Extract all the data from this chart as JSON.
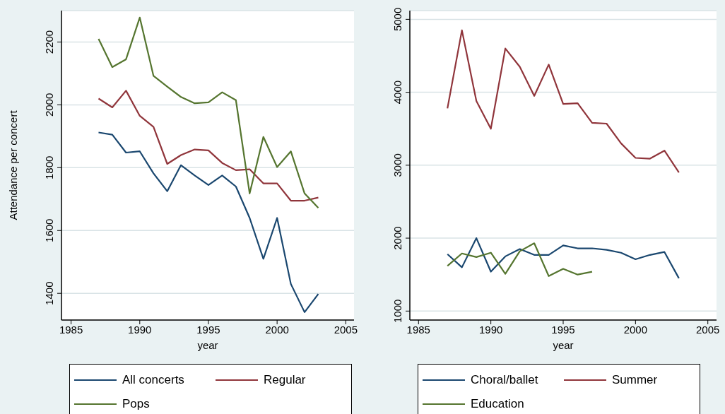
{
  "chart_data": [
    {
      "type": "line",
      "xlabel": "year",
      "ylabel": "Attendance per concert",
      "x": [
        1987,
        1988,
        1989,
        1990,
        1991,
        1992,
        1993,
        1994,
        1995,
        1996,
        1997,
        1998,
        1999,
        2000,
        2001,
        2002,
        2003
      ],
      "series": [
        {
          "name": "All concerts",
          "color": "#1a476f",
          "values": [
            1912,
            1905,
            1848,
            1852,
            1782,
            1725,
            1808,
            1775,
            1745,
            1775,
            1740,
            1640,
            1510,
            1640,
            1430,
            1340,
            1398
          ]
        },
        {
          "name": "Regular",
          "color": "#90353b",
          "values": [
            2020,
            1992,
            2045,
            1965,
            1930,
            1812,
            1840,
            1858,
            1855,
            1815,
            1792,
            1795,
            1750,
            1750,
            1695,
            1695,
            1705
          ]
        },
        {
          "name": "Pops",
          "color": "#55752f",
          "values": [
            2210,
            2120,
            2145,
            2278,
            2092,
            2058,
            2025,
            2005,
            2008,
            2040,
            2015,
            1718,
            1898,
            1802,
            1852,
            1718,
            1672
          ]
        }
      ],
      "xlim": [
        1984.3,
        2005.6
      ],
      "ylim": [
        1315,
        2300
      ],
      "xticks": [
        1985,
        1990,
        1995,
        2000,
        2005
      ],
      "yticks": [
        1400,
        1600,
        1800,
        2000,
        2200
      ],
      "grid": "y",
      "legend": "bottom"
    },
    {
      "type": "line",
      "xlabel": "year",
      "x": [
        1987,
        1988,
        1989,
        1990,
        1991,
        1992,
        1993,
        1994,
        1995,
        1996,
        1997,
        1998,
        1999,
        2000,
        2001,
        2002,
        2003
      ],
      "series": [
        {
          "name": "Choral/ballet",
          "color": "#1a476f",
          "values": [
            1780,
            1600,
            2000,
            1540,
            1750,
            1850,
            1770,
            1770,
            1900,
            1860,
            1860,
            1840,
            1800,
            1710,
            1770,
            1810,
            1450
          ]
        },
        {
          "name": "Summer",
          "color": "#90353b",
          "values": [
            3780,
            4850,
            3880,
            3500,
            4600,
            4350,
            3950,
            4380,
            3840,
            3850,
            3580,
            3570,
            3300,
            3100,
            3090,
            3200,
            2900
          ]
        },
        {
          "name": "Education",
          "color": "#55752f",
          "values": [
            1620,
            1790,
            1740,
            1800,
            1510,
            1820,
            1930,
            1480,
            1580,
            1500,
            1540,
            null,
            null,
            null,
            null,
            null,
            null
          ]
        }
      ],
      "xlim": [
        1984.4,
        2005.6
      ],
      "ylim": [
        877,
        5120
      ],
      "xticks": [
        1985,
        1990,
        1995,
        2000,
        2005
      ],
      "yticks": [
        1000,
        2000,
        3000,
        4000,
        5000
      ],
      "grid": "y",
      "legend": "bottom"
    }
  ]
}
